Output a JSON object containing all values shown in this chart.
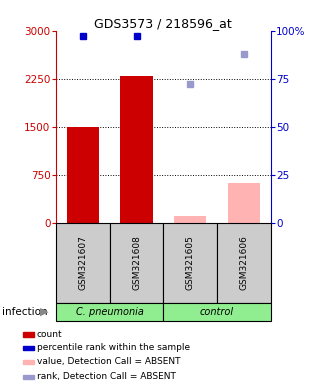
{
  "title": "GDS3573 / 218596_at",
  "samples": [
    "GSM321607",
    "GSM321608",
    "GSM321605",
    "GSM321606"
  ],
  "bar_values": [
    1500,
    2300,
    100,
    620
  ],
  "bar_colors": [
    "#cc0000",
    "#cc0000",
    "#ffb3b3",
    "#ffb3b3"
  ],
  "rank_present": [
    97,
    97,
    null,
    null
  ],
  "rank_absent": [
    null,
    null,
    72,
    88
  ],
  "rank_present_color": "#0000cc",
  "rank_absent_color": "#9999cc",
  "ylim_left": [
    0,
    3000
  ],
  "ylim_right": [
    0,
    100
  ],
  "yticks_left": [
    0,
    750,
    1500,
    2250,
    3000
  ],
  "yticks_right": [
    0,
    25,
    50,
    75,
    100
  ],
  "ytick_labels_right": [
    "0",
    "25",
    "50",
    "75",
    "100%"
  ],
  "left_axis_color": "#cc0000",
  "right_axis_color": "#0000cc",
  "sample_box_color": "#cccccc",
  "group_info": [
    {
      "label": "C. pneumonia",
      "start": 0,
      "end": 2,
      "color": "#90EE90"
    },
    {
      "label": "control",
      "start": 2,
      "end": 4,
      "color": "#90EE90"
    }
  ],
  "group_label": "infection",
  "legend_colors": [
    "#cc0000",
    "#0000cc",
    "#ffb3b3",
    "#9999cc"
  ],
  "legend_labels": [
    "count",
    "percentile rank within the sample",
    "value, Detection Call = ABSENT",
    "rank, Detection Call = ABSENT"
  ]
}
